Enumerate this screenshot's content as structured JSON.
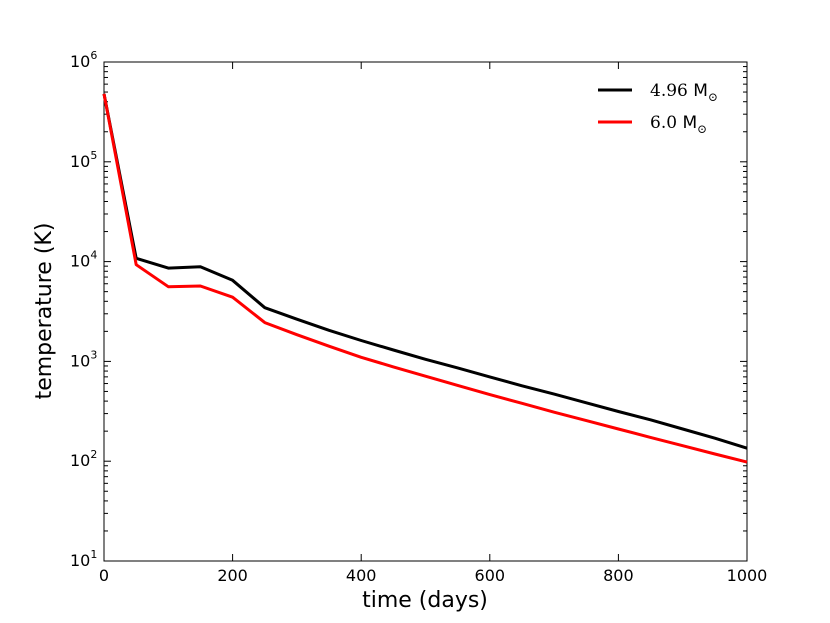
{
  "chart_data": {
    "type": "line",
    "title": "",
    "xlabel": "time (days)",
    "ylabel": "temperature (K)",
    "xlim": [
      0,
      1000
    ],
    "ylim": [
      10,
      1000000
    ],
    "yscale": "log",
    "grid": false,
    "legend_position": "top-right",
    "x_ticks": [
      0,
      200,
      400,
      600,
      800,
      1000
    ],
    "y_ticks": [
      {
        "value": 10,
        "base": "10",
        "exp": "1"
      },
      {
        "value": 100,
        "base": "10",
        "exp": "2"
      },
      {
        "value": 1000,
        "base": "10",
        "exp": "3"
      },
      {
        "value": 10000,
        "base": "10",
        "exp": "4"
      },
      {
        "value": 100000,
        "base": "10",
        "exp": "5"
      },
      {
        "value": 1000000,
        "base": "10",
        "exp": "6"
      }
    ],
    "series": [
      {
        "name": "4.96",
        "unit_symbol": "M",
        "unit_subscript": "⊙",
        "color": "#000000",
        "x": [
          0,
          50,
          100,
          150,
          200,
          250,
          300,
          350,
          400,
          450,
          500,
          550,
          600,
          650,
          700,
          750,
          800,
          850,
          900,
          950,
          1000
        ],
        "y": [
          480000,
          10800,
          8600,
          8900,
          6500,
          3450,
          2650,
          2050,
          1620,
          1300,
          1050,
          860,
          700,
          570,
          470,
          385,
          315,
          260,
          210,
          170,
          135
        ]
      },
      {
        "name": "6.0",
        "unit_symbol": "M",
        "unit_subscript": "⊙",
        "color": "#ff0000",
        "x": [
          0,
          50,
          100,
          150,
          200,
          250,
          300,
          350,
          400,
          450,
          500,
          550,
          600,
          650,
          700,
          750,
          800,
          850,
          900,
          950,
          1000
        ],
        "y": [
          480000,
          9300,
          5600,
          5700,
          4400,
          2450,
          1850,
          1420,
          1100,
          880,
          710,
          575,
          465,
          380,
          310,
          255,
          210,
          173,
          143,
          118,
          98
        ]
      }
    ]
  }
}
